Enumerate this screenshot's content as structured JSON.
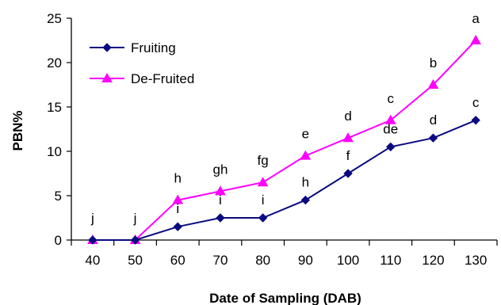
{
  "chart_data": {
    "type": "line",
    "x": [
      40,
      50,
      60,
      70,
      80,
      90,
      100,
      110,
      120,
      130
    ],
    "xlabel": "Date of Sampling (DAB)",
    "ylabel": "PBN%",
    "ylim": [
      0,
      25
    ],
    "yticks": [
      0,
      5,
      10,
      15,
      20,
      25
    ],
    "grid": false,
    "legend": "top-left",
    "series": [
      {
        "name": "Fruiting",
        "color": "#0a0a80",
        "marker": "diamond",
        "values": [
          0,
          0,
          1.5,
          2.5,
          2.5,
          4.5,
          7.5,
          10.5,
          11.5,
          13.5
        ],
        "labels": [
          "",
          "",
          "i",
          "i",
          "i",
          "h",
          "f",
          "de",
          "d",
          "c"
        ]
      },
      {
        "name": "De-Fruited",
        "color": "#ff00ff",
        "marker": "triangle",
        "values": [
          0,
          0,
          4.5,
          5.5,
          6.5,
          9.5,
          11.5,
          13.5,
          17.5,
          22.5
        ],
        "labels": [
          "j",
          "j",
          "h",
          "gh",
          "fg",
          "e",
          "d",
          "c",
          "b",
          "a"
        ]
      }
    ]
  }
}
